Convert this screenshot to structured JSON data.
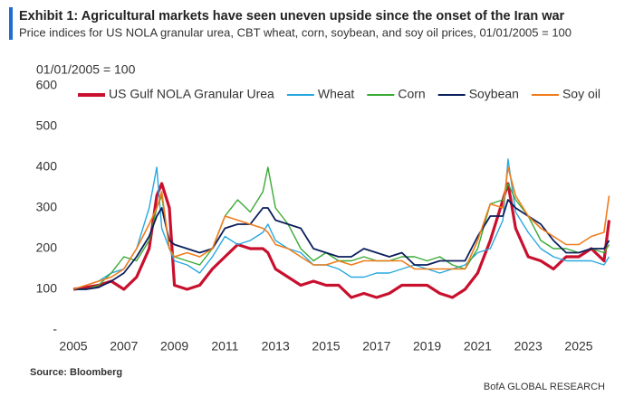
{
  "chart_data": {
    "type": "line",
    "title": "Exhibit 1: Agricultural markets have seen uneven upside since the onset of the Iran war",
    "subtitle": "Price indices for US NOLA granular urea, CBT wheat, corn, soybean, and soy oil prices, 01/01/2005 = 100",
    "y_label": "01/01/2005 = 100",
    "source": "Source: Bloomberg",
    "credit": "BofA GLOBAL RESEARCH",
    "x": [
      2005,
      2005.5,
      2006,
      2006.5,
      2007,
      2007.5,
      2008,
      2008.3,
      2008.5,
      2008.8,
      2009,
      2009.5,
      2010,
      2010.5,
      2011,
      2011.5,
      2012,
      2012.5,
      2012.7,
      2013,
      2013.5,
      2014,
      2014.5,
      2015,
      2015.5,
      2016,
      2016.5,
      2017,
      2017.5,
      2018,
      2018.5,
      2019,
      2019.5,
      2020,
      2020.5,
      2021,
      2021.5,
      2022,
      2022.2,
      2022.5,
      2023,
      2023.5,
      2024,
      2024.5,
      2025,
      2025.5,
      2026,
      2026.2
    ],
    "series": [
      {
        "name": "US Gulf NOLA Granular Urea",
        "color": "#c8102e",
        "width": 3.2,
        "values": [
          100,
          105,
          110,
          120,
          100,
          130,
          200,
          330,
          360,
          300,
          110,
          100,
          110,
          150,
          180,
          210,
          200,
          200,
          190,
          150,
          130,
          110,
          120,
          110,
          110,
          80,
          90,
          80,
          90,
          110,
          110,
          110,
          90,
          80,
          100,
          140,
          220,
          320,
          360,
          250,
          180,
          170,
          150,
          180,
          180,
          200,
          170,
          270
        ]
      },
      {
        "name": "Wheat",
        "color": "#29a8e0",
        "width": 1.4,
        "values": [
          100,
          110,
          120,
          140,
          150,
          200,
          300,
          400,
          250,
          200,
          170,
          160,
          140,
          180,
          230,
          210,
          220,
          240,
          260,
          220,
          200,
          190,
          160,
          160,
          150,
          130,
          130,
          140,
          140,
          150,
          160,
          150,
          140,
          150,
          160,
          190,
          200,
          270,
          420,
          290,
          240,
          200,
          180,
          170,
          170,
          170,
          160,
          180
        ]
      },
      {
        "name": "Corn",
        "color": "#3aaa35",
        "width": 1.4,
        "values": [
          100,
          100,
          110,
          140,
          180,
          170,
          220,
          300,
          330,
          200,
          180,
          170,
          160,
          200,
          280,
          320,
          290,
          340,
          400,
          300,
          260,
          200,
          170,
          190,
          170,
          170,
          180,
          170,
          170,
          180,
          180,
          170,
          180,
          160,
          150,
          200,
          310,
          320,
          360,
          320,
          280,
          220,
          200,
          200,
          190,
          200,
          190,
          210
        ]
      },
      {
        "name": "Soybean",
        "color": "#0b1f5c",
        "width": 1.8,
        "values": [
          100,
          100,
          105,
          120,
          140,
          180,
          230,
          280,
          300,
          220,
          210,
          200,
          190,
          200,
          250,
          260,
          260,
          300,
          300,
          270,
          260,
          250,
          200,
          190,
          180,
          180,
          200,
          190,
          180,
          190,
          160,
          160,
          170,
          170,
          170,
          230,
          280,
          280,
          320,
          300,
          280,
          260,
          220,
          190,
          190,
          200,
          200,
          220
        ]
      },
      {
        "name": "Soy oil",
        "color": "#f07c1c",
        "width": 1.6,
        "values": [
          100,
          110,
          120,
          130,
          150,
          200,
          260,
          300,
          340,
          200,
          180,
          190,
          180,
          200,
          280,
          270,
          260,
          250,
          240,
          210,
          200,
          180,
          160,
          160,
          170,
          160,
          170,
          170,
          170,
          170,
          150,
          150,
          150,
          150,
          150,
          220,
          310,
          300,
          400,
          330,
          280,
          250,
          230,
          210,
          210,
          230,
          240,
          330
        ]
      }
    ],
    "xlim": [
      2005,
      2026.3
    ],
    "xticks": [
      2005,
      2007,
      2009,
      2011,
      2013,
      2015,
      2017,
      2019,
      2021,
      2023,
      2025
    ],
    "ylim": [
      0,
      600
    ],
    "yticks": [
      {
        "value": 0,
        "label": "-"
      },
      100,
      200,
      300,
      400,
      500,
      600
    ]
  }
}
